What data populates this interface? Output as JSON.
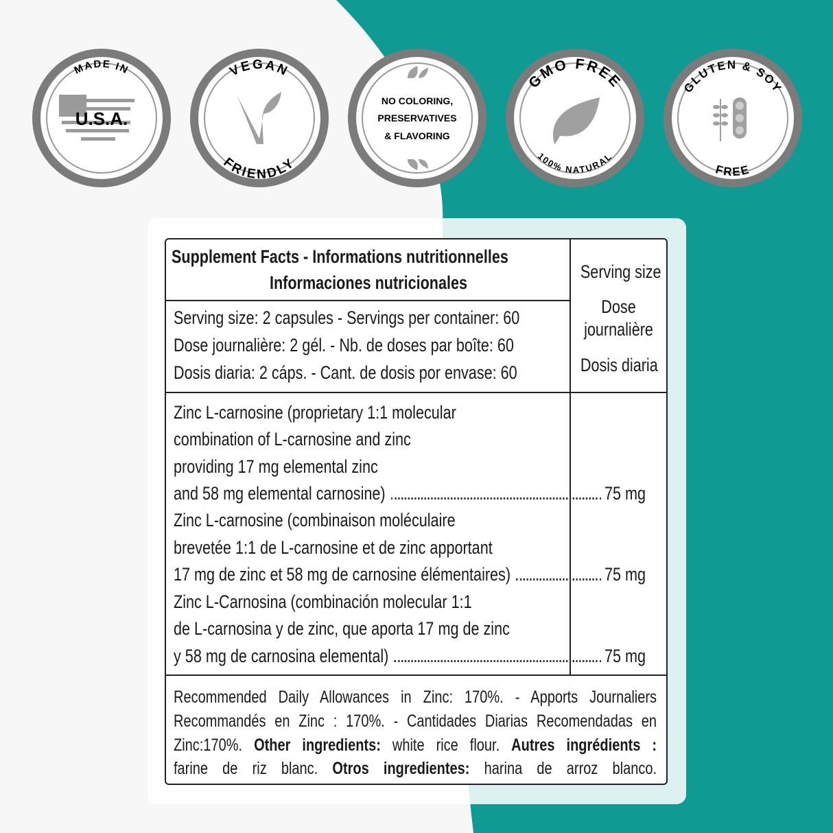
{
  "colors": {
    "teal": "#0f9b94",
    "background": "#f7f7f8",
    "badge_ring": "#7b7b7b",
    "badge_icon": "#9e9e9e"
  },
  "badges": [
    {
      "top": "MADE IN",
      "center": "U.S.A.",
      "icon": "usa-flag-map-icon"
    },
    {
      "top": "VEGAN",
      "bottom": "FRIENDLY",
      "icon": "v-leaf-icon"
    },
    {
      "lines": [
        "NO COLORING,",
        "PRESERVATIVES",
        "& FLAVORING"
      ],
      "icon": "leaves-icon"
    },
    {
      "top": "GMO FREE",
      "bottom": "100% NATURAL",
      "icon": "leaf-icon"
    },
    {
      "top": "GLUTEN & SOY",
      "bottom": "FREE",
      "icon": "wheat-soy-icon"
    }
  ],
  "facts": {
    "title": [
      "Supplement Facts - Informations nutritionnelles",
      "Informaciones nutricionales"
    ],
    "serving_header": [
      "Serving size",
      "Dose",
      "journalière",
      "Dosis diaria"
    ],
    "serving_lines": [
      "Serving size: 2 capsules - Servings per container: 60",
      "Dose journalière: 2 gél. - Nb. de doses par boîte: 60",
      "Dosis diaria: 2 cáps. - Cant. de dosis por envase: 60"
    ],
    "ingredients": [
      {
        "lines": [
          "Zinc L-carnosine (proprietary 1:1 molecular",
          "combination of L-carnosine and zinc",
          "providing 17 mg elemental zinc",
          "and 58 mg elemental carnosine)"
        ],
        "amount": "75 mg"
      },
      {
        "lines": [
          "Zinc L-carnosine (combinaison moléculaire",
          "brevetée 1:1 de L-carnosine et de zinc apportant",
          "17 mg de zinc et 58 mg de carnosine élémentaires)"
        ],
        "amount": "75 mg"
      },
      {
        "lines": [
          "Zinc L-Carnosina (combinación molecular 1:1",
          "de L-carnosina y de zinc, que aporta 17 mg de zinc",
          "y 58 mg de carnosina elemental)"
        ],
        "amount": "75 mg"
      }
    ],
    "footer": {
      "line1": "Recommended Daily Allowances in Zinc: 170%. - Apports Journaliers",
      "line2": "Recommandés en Zinc : 170%. - Cantidades Diarias Recomendadas en",
      "line3_a": "Zinc:170%.",
      "line3_b": "Other ingredients:",
      "line3_c": "white rice flour.",
      "line3_d": "Autres ingrédients :",
      "line4_a": "farine de riz blanc.",
      "line4_b": "Otros ingredientes:",
      "line4_c": "harina de arroz blanco."
    }
  }
}
